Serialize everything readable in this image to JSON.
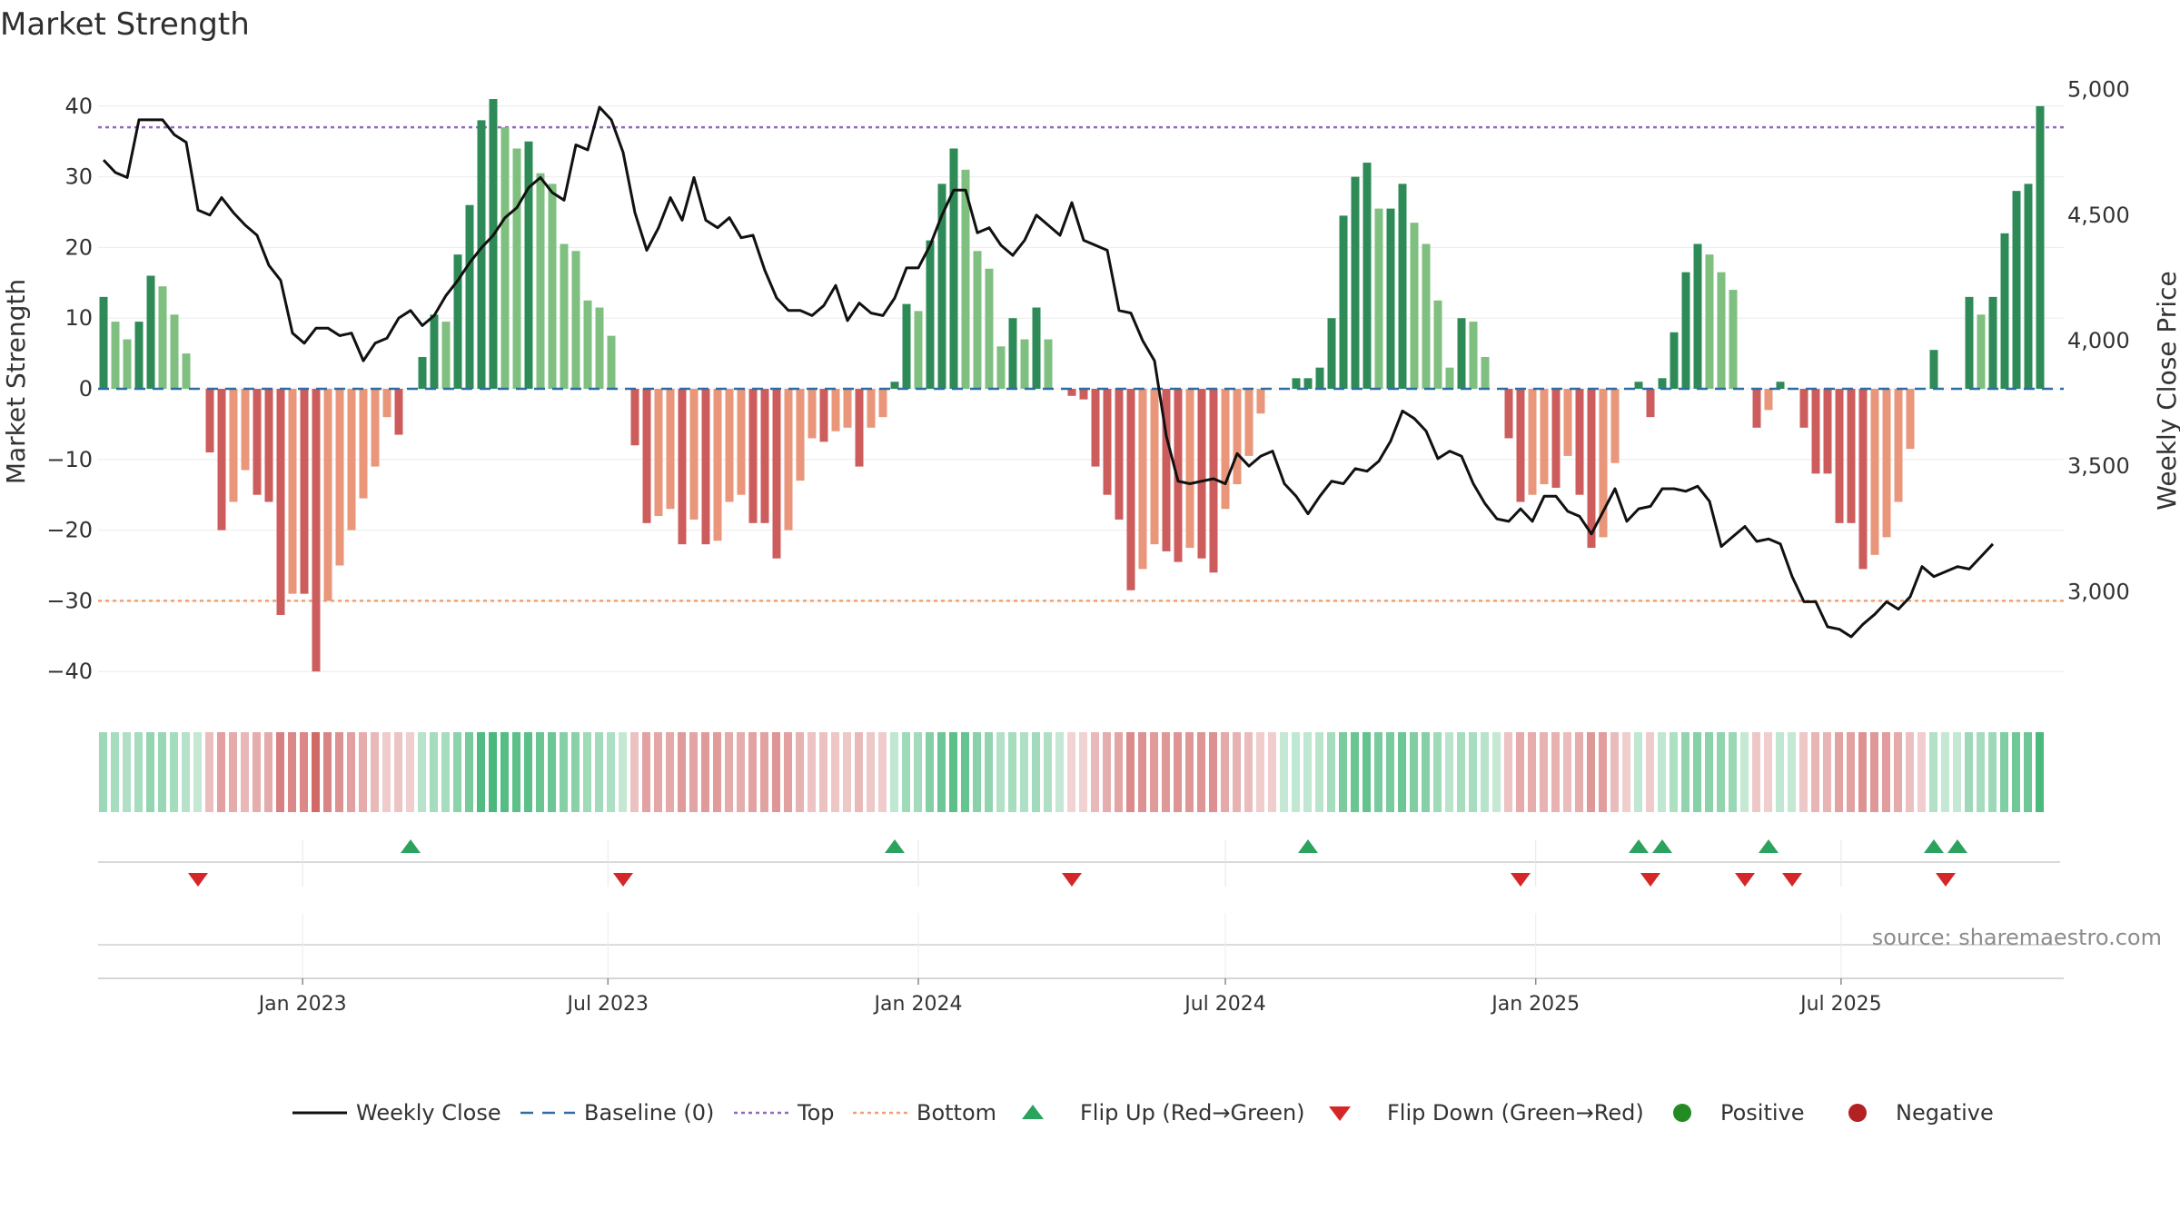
{
  "chart_data": {
    "type": "bar+line",
    "title": "Market Strength",
    "ylabel_left": "Market Strength",
    "ylabel_right": "Weekly Close Price",
    "source": "source: sharemaestro.com",
    "left_ylim": [
      -45,
      45
    ],
    "left_ticks": [
      {
        "v": 40,
        "label": "40"
      },
      {
        "v": 30,
        "label": "30"
      },
      {
        "v": 20,
        "label": "20"
      },
      {
        "v": 10,
        "label": "10"
      },
      {
        "v": 0,
        "label": "0"
      },
      {
        "v": -10,
        "label": "−10"
      },
      {
        "v": -20,
        "label": "−20"
      },
      {
        "v": -30,
        "label": "−30"
      },
      {
        "v": -40,
        "label": "−40"
      }
    ],
    "right_ylim": [
      2520,
      5090
    ],
    "right_ticks": [
      {
        "v": 5000,
        "label": "5,000"
      },
      {
        "v": 4500,
        "label": "4,500"
      },
      {
        "v": 4000,
        "label": "4,000"
      },
      {
        "v": 3500,
        "label": "3,500"
      },
      {
        "v": 3000,
        "label": "3,000"
      }
    ],
    "top_level": 37,
    "bottom_level": -30,
    "x_start": "2022-09-05",
    "week_days": 7,
    "x_ticks": [
      {
        "date": "2023-01-01",
        "label": "Jan 2023"
      },
      {
        "date": "2023-07-01",
        "label": "Jul 2023"
      },
      {
        "date": "2024-01-01",
        "label": "Jan 2024"
      },
      {
        "date": "2024-07-01",
        "label": "Jul 2024"
      },
      {
        "date": "2025-01-01",
        "label": "Jan 2025"
      },
      {
        "date": "2025-07-01",
        "label": "Jul 2025"
      }
    ],
    "strength": [
      13,
      9.5,
      7,
      9.5,
      16,
      14.5,
      10.5,
      5,
      0,
      -9,
      -20,
      -16,
      -11.5,
      -15,
      -16,
      -32,
      -29,
      -29,
      -40,
      -30,
      -25,
      -20,
      -15.5,
      -11,
      -4,
      -6.5,
      0,
      4.5,
      10.5,
      9.5,
      19,
      26,
      38,
      41,
      37,
      34,
      35,
      30.5,
      29,
      20.5,
      19.5,
      12.5,
      11.5,
      7.5,
      0,
      -8,
      -19,
      -18,
      -17,
      -22,
      -18.5,
      -22,
      -21.5,
      -16,
      -15,
      -19,
      -19,
      -24,
      -20,
      -13,
      -7,
      -7.5,
      -6,
      -5.5,
      -11,
      -5.5,
      -4,
      1,
      12,
      11,
      21,
      29,
      34,
      31,
      19.5,
      17,
      6,
      10,
      7,
      11.5,
      7,
      0,
      -1,
      -1.5,
      -11,
      -15,
      -18.5,
      -28.5,
      -25.5,
      -22,
      -23,
      -24.5,
      -22.5,
      -24,
      -26,
      -17,
      -13.5,
      -9.5,
      -3.5,
      0,
      0,
      1.5,
      1.5,
      3,
      10,
      24.5,
      30,
      32,
      25.5,
      25.5,
      29,
      23.5,
      20.5,
      12.5,
      3,
      10,
      9.5,
      4.5,
      0,
      -7,
      -16,
      -15,
      -13.5,
      -14,
      -9.5,
      -15,
      -22.5,
      -21,
      -10.5,
      0,
      1,
      -4,
      1.5,
      8,
      16.5,
      20.5,
      19,
      16.5,
      14,
      0,
      -5.5,
      -3,
      1,
      0,
      -5.5,
      -12,
      -12,
      -19,
      -19,
      -25.5,
      -23.5,
      -21,
      -16,
      -8.5,
      0,
      5.5,
      0,
      0,
      13,
      10.5,
      13,
      22,
      28,
      29,
      40
    ],
    "strength_weeks": [
      0,
      1,
      2,
      3,
      4,
      5,
      6,
      7,
      8,
      9,
      10,
      11,
      12,
      13,
      14,
      15,
      16,
      17,
      18,
      19,
      20,
      21,
      22,
      23,
      24,
      25,
      26,
      27,
      28,
      29,
      30,
      31,
      32,
      33,
      34,
      35,
      36,
      37,
      38,
      39,
      40,
      41,
      42,
      43,
      44,
      45,
      46,
      47,
      48,
      49,
      50,
      51,
      52,
      53,
      54,
      55,
      56,
      57,
      58,
      59,
      60,
      61,
      62,
      63,
      64,
      65,
      66,
      67,
      68,
      69,
      70,
      71,
      72,
      73,
      74,
      75,
      76,
      77,
      78,
      79,
      80,
      81,
      82,
      83,
      84,
      85,
      86,
      87,
      88,
      89,
      90,
      91,
      92,
      93,
      94,
      95,
      96,
      97,
      98,
      99,
      100,
      101,
      102,
      103,
      104,
      105,
      106,
      107,
      108,
      109,
      110,
      111,
      112,
      113,
      114,
      115,
      116,
      117,
      118,
      119,
      120,
      121,
      122,
      123,
      124,
      125,
      126,
      127,
      128,
      129,
      130,
      131,
      132,
      133,
      134,
      135,
      136,
      137,
      138,
      139,
      140,
      141,
      142,
      143,
      144,
      145,
      146,
      147,
      148,
      149,
      150,
      151,
      152,
      153,
      154,
      155,
      156,
      157,
      158,
      159,
      160,
      161,
      162,
      163,
      164
    ],
    "close": [
      4720,
      4670,
      4650,
      4880,
      4880,
      4880,
      4820,
      4790,
      4520,
      4500,
      4570,
      4510,
      4460,
      4420,
      4300,
      4240,
      4030,
      3990,
      4050,
      4050,
      4020,
      4030,
      3920,
      3990,
      4010,
      4090,
      4120,
      4060,
      4100,
      4180,
      4240,
      4310,
      4370,
      4420,
      4490,
      4530,
      4610,
      4650,
      4590,
      4560,
      4780,
      4760,
      4930,
      4880,
      4750,
      4510,
      4360,
      4450,
      4570,
      4480,
      4650,
      4480,
      4450,
      4490,
      4410,
      4420,
      4280,
      4170,
      4120,
      4120,
      4100,
      4140,
      4220,
      4080,
      4150,
      4110,
      4100,
      4170,
      4290,
      4290,
      4380,
      4500,
      4600,
      4600,
      4430,
      4450,
      4380,
      4340,
      4400,
      4500,
      4460,
      4420,
      4550,
      4400,
      4380,
      4360,
      4120,
      4110,
      4000,
      3920,
      3620,
      3440,
      3430,
      3440,
      3450,
      3430,
      3550,
      3500,
      3540,
      3560,
      3430,
      3380,
      3310,
      3380,
      3440,
      3430,
      3490,
      3480,
      3520,
      3600,
      3720,
      3690,
      3640,
      3530,
      3560,
      3540,
      3430,
      3350,
      3290,
      3280,
      3330,
      3280,
      3380,
      3380,
      3320,
      3300,
      3230,
      3320,
      3410,
      3280,
      3330,
      3340,
      3410,
      3410,
      3400,
      3420,
      3360,
      3180,
      3220,
      3260,
      3200,
      3210,
      3190,
      3060,
      2960,
      2960,
      2860,
      2850,
      2820,
      2870,
      2910,
      2960,
      2930,
      2980,
      3100,
      3060,
      3080,
      3100,
      3090,
      3140,
      3190
    ],
    "close_weeks": [
      0,
      1,
      2,
      3,
      4,
      5,
      6,
      7,
      8,
      9,
      10,
      11,
      12,
      13,
      14,
      15,
      16,
      17,
      18,
      19,
      20,
      21,
      22,
      23,
      24,
      25,
      26,
      27,
      28,
      29,
      30,
      31,
      32,
      33,
      34,
      35,
      36,
      37,
      38,
      39,
      40,
      41,
      42,
      43,
      44,
      45,
      46,
      47,
      48,
      49,
      50,
      51,
      52,
      53,
      54,
      55,
      56,
      57,
      58,
      59,
      60,
      61,
      62,
      63,
      64,
      65,
      66,
      67,
      68,
      69,
      70,
      71,
      72,
      73,
      74,
      75,
      76,
      77,
      78,
      79,
      80,
      81,
      82,
      83,
      84,
      85,
      86,
      87,
      88,
      89,
      90,
      91,
      92,
      93,
      94,
      95,
      96,
      97,
      98,
      99,
      100,
      101,
      102,
      103,
      104,
      105,
      106,
      107,
      108,
      109,
      110,
      111,
      112,
      113,
      114,
      115,
      116,
      117,
      118,
      119,
      120,
      121,
      122,
      123,
      124,
      125,
      126,
      127,
      128,
      129,
      130,
      131,
      132,
      133,
      134,
      135,
      136,
      137,
      138,
      139,
      140,
      141,
      142,
      143,
      144,
      145,
      146,
      147,
      148,
      149,
      150,
      151,
      152,
      153,
      154,
      155,
      156,
      157,
      158,
      159,
      160,
      161,
      162,
      163,
      164
    ],
    "flip_up_weeks": [
      26,
      67,
      102,
      130,
      132,
      141,
      155,
      157
    ],
    "flip_down_weeks": [
      8,
      44,
      82,
      120,
      131,
      139,
      143,
      156
    ],
    "legend": [
      {
        "key": "weekly-close",
        "label": "Weekly Close",
        "symbol": "line",
        "color": "#111111"
      },
      {
        "key": "baseline",
        "label": "Baseline (0)",
        "symbol": "dash",
        "color": "#2e6da4"
      },
      {
        "key": "top",
        "label": "Top",
        "symbol": "dot",
        "color": "#9467bd"
      },
      {
        "key": "bottom",
        "label": "Bottom",
        "symbol": "dot",
        "color": "#f0a070"
      },
      {
        "key": "flip-up",
        "label": "Flip Up (Red→Green)",
        "symbol": "tri-up",
        "color": "#2ca25f"
      },
      {
        "key": "flip-down",
        "label": "Flip Down (Green→Red)",
        "symbol": "tri-down",
        "color": "#d62728"
      },
      {
        "key": "positive",
        "label": "Positive",
        "symbol": "circle",
        "color": "#228b22"
      },
      {
        "key": "negative",
        "label": "Negative",
        "symbol": "circle",
        "color": "#b22222"
      }
    ],
    "colors": {
      "pos_strong": "#2e8b57",
      "pos_light": "#7fbf7f",
      "neg_strong": "#cd5c5c",
      "neg_light": "#e9967a",
      "close": "#111111",
      "top": "#9467bd",
      "bottom": "#f0a070",
      "baseline": "#2e6da4",
      "strip_pos": "#3cb371",
      "strip_neg": "#cd5c5c"
    }
  }
}
